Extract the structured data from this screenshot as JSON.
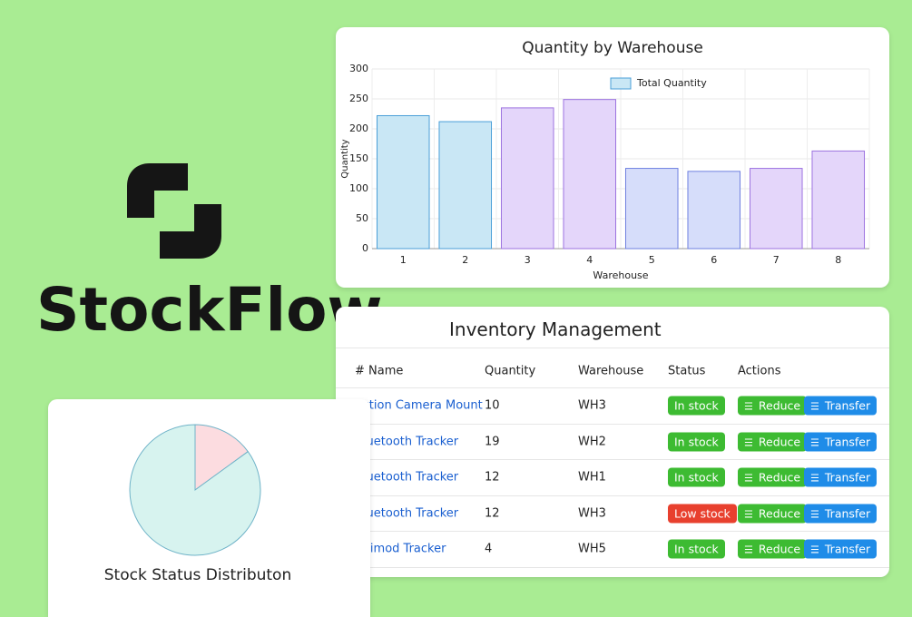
{
  "brand": {
    "name": "StockFlow"
  },
  "chart_data": [
    {
      "type": "bar",
      "title": "Quantity by Warehouse",
      "x_label": "Warehouse",
      "y_label": "Quantity",
      "categories": [
        "1",
        "2",
        "3",
        "4",
        "5",
        "6",
        "7",
        "8"
      ],
      "series": [
        {
          "name": "Total Quantity",
          "color": "#c9e7f5",
          "stroke": "#4a9fd8",
          "values": [
            222,
            212,
            235,
            249,
            134,
            129,
            134,
            163
          ],
          "colors": [
            "#c9e7f5",
            "#c9e7f5",
            "#e4d6fa",
            "#e4d6fa",
            "#d6ddfa",
            "#d6ddfa",
            "#e4d6fa",
            "#e4d6fa"
          ],
          "strokes": [
            "#4a9fd8",
            "#4a9fd8",
            "#9d73e0",
            "#9d73e0",
            "#6f80e0",
            "#6f80e0",
            "#9d73e0",
            "#9d73e0"
          ]
        }
      ],
      "ylim": [
        0,
        300
      ],
      "yticks": [
        0,
        50,
        100,
        150,
        200,
        250,
        300
      ],
      "grid": true,
      "legend": "top"
    },
    {
      "type": "pie",
      "title": "Stock Status Distributon",
      "categories": [
        null,
        null
      ],
      "values": [
        15,
        85
      ],
      "colors": [
        "#fcdce0",
        "#d7f3ef"
      ],
      "stroke": "#6fb3c8"
    }
  ],
  "table": {
    "title": "Inventory Management",
    "columns": [
      "# Name",
      "Quantity",
      "Warehouse",
      "Status",
      "Actions"
    ],
    "actions": [
      "Reduce",
      "Transfer"
    ],
    "rows": [
      {
        "name": "Action Camera Mount",
        "quantity": 10,
        "warehouse": "WH3",
        "status": "In stock",
        "status_color": "#3dbb32"
      },
      {
        "name": "Bluetooth Tracker",
        "quantity": 19,
        "warehouse": "WH2",
        "status": "In stock",
        "status_color": "#3dbb32"
      },
      {
        "name": "Bluetooth Tracker",
        "quantity": 12,
        "warehouse": "WH1",
        "status": "In stock",
        "status_color": "#3dbb32"
      },
      {
        "name": "Bluetooth Tracker",
        "quantity": 12,
        "warehouse": "WH3",
        "status": "Low stock",
        "status_color": "#e8402e"
      },
      {
        "name": "Jetimod Tracker",
        "quantity": 4,
        "warehouse": "WH5",
        "status": "In stock",
        "status_color": "#3dbb32"
      }
    ]
  }
}
